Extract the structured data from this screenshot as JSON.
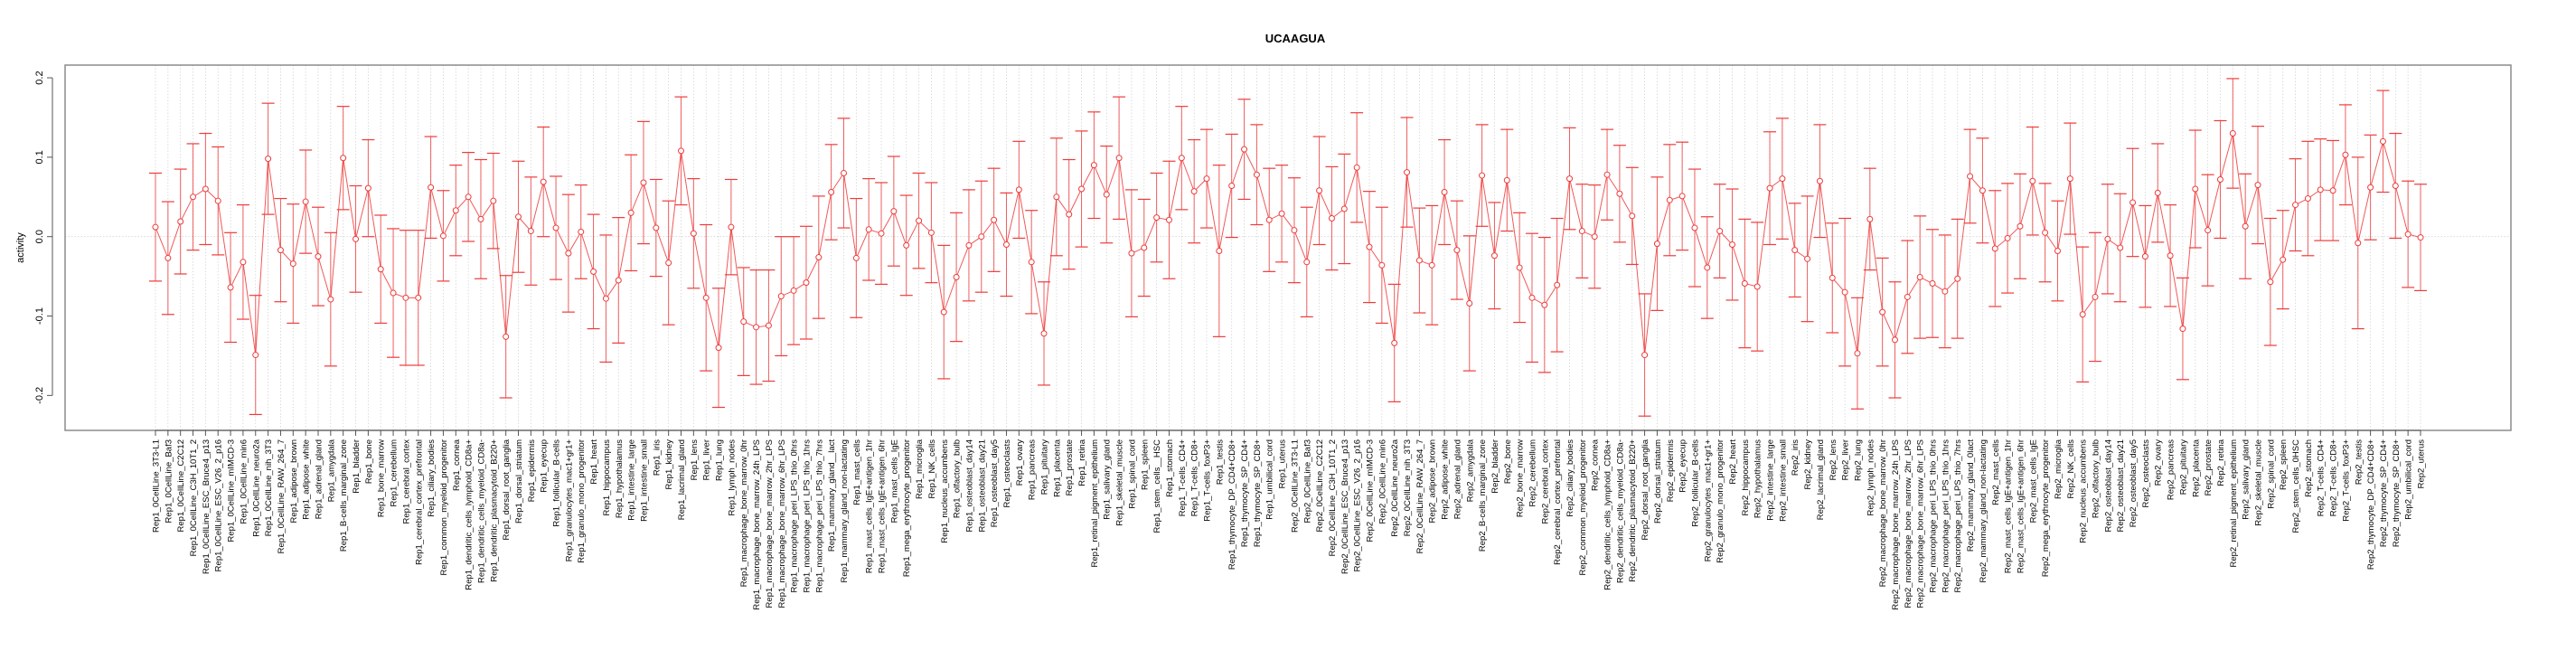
{
  "chart_data": {
    "type": "line",
    "title": "UCAAGUA",
    "xlabel": "",
    "ylabel": "activity",
    "ylim": [
      -0.244,
      0.216
    ],
    "yticks": [
      -0.2,
      -0.1,
      0.0,
      0.1,
      0.2
    ],
    "ytick_labels": [
      "-0.2",
      "-0.1",
      "0.0",
      "0.1",
      "0.2"
    ],
    "grid": true,
    "legend": "none",
    "color": "#ee3b3b",
    "categories": [
      "Rep1_0CellLine_3T3-L1",
      "Rep1_0CellLine_Baf3",
      "Rep1_0CellLine_C2C12",
      "Rep1_0CellLine_C3H_10T1_2",
      "Rep1_0CellLine_ESC_Bruce4_p13",
      "Rep1_0CellLine_ESC_V26_2_p16",
      "Rep1_0CellLine_mIMCD-3",
      "Rep1_0CellLine_min6",
      "Rep1_0CellLine_neuro2a",
      "Rep1_0CellLine_nih_3T3",
      "Rep1_0CellLine_RAW_264_7",
      "Rep1_adipose_brown",
      "Rep1_adipose_white",
      "Rep1_adrenal_gland",
      "Rep1_amygdala",
      "Rep1_B-cells_marginal_zone",
      "Rep1_bladder",
      "Rep1_bone",
      "Rep1_bone_marrow",
      "Rep1_cerebellum",
      "Rep1_cerebral_cortex",
      "Rep1_cerebral_cortex_prefrontal",
      "Rep1_ciliary_bodies",
      "Rep1_common_myeloid_progenitor",
      "Rep1_cornea",
      "Rep1_dendritic_cells_lymphoid_CD8a+",
      "Rep1_dendritic_cells_myeloid_CD8a-",
      "Rep1_dendritic_plasmacytoid_B220+",
      "Rep1_dorsal_root_ganglia",
      "Rep1_dorsal_striatum",
      "Rep1_epidermis",
      "Rep1_eyecup",
      "Rep1_follicular_B-cells",
      "Rep1_granulocytes_mac1+gr1+",
      "Rep1_granulo_mono_progenitor",
      "Rep1_heart",
      "Rep1_hippocampus",
      "Rep1_hypothalamus",
      "Rep1_intestine_large",
      "Rep1_intestine_small",
      "Rep1_iris",
      "Rep1_kidney",
      "Rep1_lacrimal_gland",
      "Rep1_lens",
      "Rep1_liver",
      "Rep1_lung",
      "Rep1_lymph_nodes",
      "Rep1_macrophage_bone_marrow_0hr",
      "Rep1_macrophage_bone_marrow_24h_LPS",
      "Rep1_macrophage_bone_marrow_2hr_LPS",
      "Rep1_macrophage_bone_marrow_6hr_LPS",
      "Rep1_macrophage_peri_LPS_thio_0hrs",
      "Rep1_macrophage_peri_LPS_thio_1hrs",
      "Rep1_macrophage_peri_LPS_thio_7hrs",
      "Rep1_mammary_gland__lact",
      "Rep1_mammary_gland_non-lactating",
      "Rep1_mast_cells",
      "Rep1_mast_cells_IgE+antigen_1hr",
      "Rep1_mast_cells_IgE+antigen_6hr",
      "Rep1_mast_cells_IgE",
      "Rep1_mega_erythrocyte_progenitor",
      "Rep1_microglia",
      "Rep1_NK_cells",
      "Rep1_nucleus_accumbens",
      "Rep1_olfactory_bulb",
      "Rep1_osteoblast_day14",
      "Rep1_osteoblast_day21",
      "Rep1_osteoblast_day5",
      "Rep1_osteoclasts",
      "Rep1_ovary",
      "Rep1_pancreas",
      "Rep1_pituitary",
      "Rep1_placenta",
      "Rep1_prostate",
      "Rep1_retina",
      "Rep1_retinal_pigment_epithelium",
      "Rep1_salivary_gland",
      "Rep1_skeletal_muscle",
      "Rep1_spinal_cord",
      "Rep1_spleen",
      "Rep1_stem_cells__HSC",
      "Rep1_stomach",
      "Rep1_T-cells_CD4+",
      "Rep1_T-cells_CD8+",
      "Rep1_T-cells_foxP3+",
      "Rep1_testis",
      "Rep1_thymocyte_DP_CD4+CD8+",
      "Rep1_thymocyte_SP_CD4+",
      "Rep1_thymocyte_SP_CD8+",
      "Rep1_umbilical_cord",
      "Rep1_uterus",
      "Rep2_0CellLine_3T3-L1",
      "Rep2_0CellLine_Baf3",
      "Rep2_0CellLine_C2C12",
      "Rep2_0CellLine_C3H_10T1_2",
      "Rep2_0CellLine_ESC_Bruce4_p13",
      "Rep2_0CellLine_ESC_V26_2_p16",
      "Rep2_0CellLine_mIMCD-3",
      "Rep2_0CellLine_min6",
      "Rep2_0CellLine_neuro2a",
      "Rep2_0CellLine_nih_3T3",
      "Rep2_0CellLine_RAW_264_7",
      "Rep2_adipose_brown",
      "Rep2_adipose_white",
      "Rep2_adrenal_gland",
      "Rep2_amygdala",
      "Rep2_B-cells_marginal_zone",
      "Rep2_bladder",
      "Rep2_bone",
      "Rep2_bone_marrow",
      "Rep2_cerebellum",
      "Rep2_cerebral_cortex",
      "Rep2_cerebral_cortex_prefrontal",
      "Rep2_ciliary_bodies",
      "Rep2_common_myeloid_progenitor",
      "Rep2_cornea",
      "Rep2_dendritic_cells_lymphoid_CD8a+",
      "Rep2_dendritic_cells_myeloid_CD8a-",
      "Rep2_dendritic_plasmacytoid_B220+",
      "Rep2_dorsal_root_ganglia",
      "Rep2_dorsal_striatum",
      "Rep2_epidermis",
      "Rep2_eyecup",
      "Rep2_follicular_B-cells",
      "Rep2_granulocytes_mac1+gr1+",
      "Rep2_granulo_mono_progenitor",
      "Rep2_heart",
      "Rep2_hippocampus",
      "Rep2_hypothalamus",
      "Rep2_intestine_large",
      "Rep2_intestine_small",
      "Rep2_iris",
      "Rep2_kidney",
      "Rep2_lacrimal_gland",
      "Rep2_lens",
      "Rep2_liver",
      "Rep2_lung",
      "Rep2_lymph_nodes",
      "Rep2_macrophage_bone_marrow_0hr",
      "Rep2_macrophage_bone_marrow_24h_LPS",
      "Rep2_macrophage_bone_marrow_2hr_LPS",
      "Rep2_macrophage_bone_marrow_6hr_LPS",
      "Rep2_macrophage_peri_LPS_thio_0hrs",
      "Rep2_macrophage_peri_LPS_thio_1hrs",
      "Rep2_macrophage_peri_LPS_thio_7hrs",
      "Rep2_mammary_gland_0lact",
      "Rep2_mammary_gland_non-lactating",
      "Rep2_mast_cells",
      "Rep2_mast_cells_IgE+antigen_1hr",
      "Rep2_mast_cells_IgE+antigen_6hr",
      "Rep2_mast_cells_IgE",
      "Rep2_mega_erythrocyte_progenitor",
      "Rep2_microglia",
      "Rep2_NK_cells",
      "Rep2_nucleus_accumbens",
      "Rep2_olfactory_bulb",
      "Rep2_osteoblast_day14",
      "Rep2_osteoblast_day21",
      "Rep2_osteoblast_day5",
      "Rep2_osteoclasts",
      "Rep2_ovary",
      "Rep2_pancreas",
      "Rep2_pituitary",
      "Rep2_placenta",
      "Rep2_prostate",
      "Rep2_retina",
      "Rep2_retinal_pigment_epithelium",
      "Rep2_salivary_gland",
      "Rep2_skeletal_muscle",
      "Rep2_spinal_cord",
      "Rep2_spleen",
      "Rep2_stem_cells_0HSC",
      "Rep2_stomach",
      "Rep2_T-cells_CD4+",
      "Rep2_T-cells_CD8+",
      "Rep2_T-cells_foxP3+",
      "Rep2_testis",
      "Rep2_thymocyte_DP_CD4+CD8+",
      "Rep2_thymocyte_SP_CD4+",
      "Rep2_thymocyte_SP_CD8+",
      "Rep2_umbilical_cord",
      "Rep2_uterus"
    ],
    "values": [
      0.012,
      -0.027,
      0.019,
      0.05,
      0.06,
      0.045,
      -0.064,
      -0.032,
      -0.149,
      0.098,
      -0.017,
      -0.034,
      0.044,
      -0.025,
      -0.079,
      0.099,
      -0.003,
      0.061,
      -0.041,
      -0.071,
      -0.077,
      -0.077,
      0.062,
      0.001,
      0.033,
      0.05,
      0.022,
      0.045,
      -0.126,
      0.025,
      0.007,
      0.069,
      0.011,
      -0.021,
      0.006,
      -0.044,
      -0.078,
      -0.055,
      0.03,
      0.068,
      0.011,
      -0.033,
      0.108,
      0.004,
      -0.077,
      -0.14,
      0.012,
      -0.107,
      -0.114,
      -0.112,
      -0.075,
      -0.068,
      -0.058,
      -0.026,
      0.056,
      0.08,
      -0.027,
      0.009,
      0.004,
      0.032,
      -0.011,
      0.02,
      0.005,
      -0.095,
      -0.051,
      -0.011,
      0.0,
      0.021,
      -0.01,
      0.059,
      -0.032,
      -0.122,
      0.05,
      0.028,
      0.06,
      0.09,
      0.053,
      0.099,
      -0.021,
      -0.014,
      0.024,
      0.021,
      0.099,
      0.057,
      0.073,
      -0.018,
      0.064,
      0.11,
      0.078,
      0.021,
      0.029,
      0.008,
      -0.032,
      0.058,
      0.023,
      0.035,
      0.087,
      -0.013,
      -0.036,
      -0.134,
      0.081,
      -0.03,
      -0.036,
      0.056,
      -0.017,
      -0.084,
      0.077,
      -0.024,
      0.071,
      -0.039,
      -0.077,
      -0.086,
      -0.061,
      0.073,
      0.007,
      0.0,
      0.078,
      0.054,
      0.026,
      -0.149,
      -0.009,
      0.046,
      0.051,
      0.011,
      -0.039,
      0.007,
      -0.01,
      -0.059,
      -0.063,
      0.061,
      0.073,
      -0.017,
      -0.028,
      0.07,
      -0.052,
      -0.07,
      -0.147,
      0.022,
      -0.095,
      -0.13,
      -0.076,
      -0.051,
      -0.059,
      -0.069,
      -0.053,
      0.076,
      0.058,
      -0.015,
      -0.002,
      0.013,
      0.07,
      0.005,
      -0.018,
      0.073,
      -0.098,
      -0.076,
      -0.003,
      -0.014,
      0.043,
      -0.025,
      0.055,
      -0.024,
      -0.116,
      0.06,
      0.008,
      0.072,
      0.13,
      0.013,
      0.065,
      -0.057,
      -0.029,
      0.04,
      0.048,
      0.059,
      0.058,
      0.103,
      -0.008,
      0.062,
      0.12,
      0.064,
      0.003,
      -0.001
    ],
    "errors": [
      0.068,
      0.071,
      0.066,
      0.067,
      0.07,
      0.068,
      0.069,
      0.072,
      0.075,
      0.07,
      0.065,
      0.075,
      0.065,
      0.062,
      0.084,
      0.065,
      0.067,
      0.061,
      0.068,
      0.081,
      0.085,
      0.085,
      0.064,
      0.057,
      0.057,
      0.056,
      0.075,
      0.06,
      0.077,
      0.07,
      0.068,
      0.069,
      0.065,
      0.074,
      0.059,
      0.072,
      0.08,
      0.079,
      0.073,
      0.077,
      0.061,
      0.078,
      0.068,
      0.069,
      0.092,
      0.075,
      0.06,
      0.068,
      0.072,
      0.07,
      0.075,
      0.068,
      0.071,
      0.077,
      0.06,
      0.069,
      0.075,
      0.064,
      0.064,
      0.069,
      0.063,
      0.06,
      0.063,
      0.084,
      0.081,
      0.07,
      0.07,
      0.065,
      0.065,
      0.061,
      0.065,
      0.065,
      0.074,
      0.069,
      0.073,
      0.067,
      0.061,
      0.077,
      0.08,
      0.061,
      0.056,
      0.074,
      0.065,
      0.065,
      0.062,
      0.108,
      0.065,
      0.063,
      0.063,
      0.065,
      0.061,
      0.066,
      0.069,
      0.068,
      0.065,
      0.069,
      0.069,
      0.07,
      0.073,
      0.074,
      0.069,
      0.066,
      0.075,
      0.066,
      0.062,
      0.085,
      0.064,
      0.067,
      0.064,
      0.069,
      0.081,
      0.085,
      0.084,
      0.064,
      0.059,
      0.065,
      0.057,
      0.061,
      0.061,
      0.077,
      0.084,
      0.07,
      0.068,
      0.074,
      0.064,
      0.059,
      0.07,
      0.081,
      0.081,
      0.071,
      0.076,
      0.059,
      0.079,
      0.071,
      0.069,
      0.093,
      0.07,
      0.064,
      0.068,
      0.073,
      0.071,
      0.077,
      0.068,
      0.071,
      0.075,
      0.059,
      0.066,
      0.073,
      0.069,
      0.066,
      0.068,
      0.062,
      0.063,
      0.07,
      0.085,
      0.081,
      0.069,
      0.068,
      0.068,
      0.064,
      0.062,
      0.064,
      0.064,
      0.074,
      0.07,
      0.074,
      0.069,
      0.066,
      0.074,
      0.08,
      0.062,
      0.058,
      0.072,
      0.064,
      0.063,
      0.063,
      0.108,
      0.066,
      0.064,
      0.066,
      0.067,
      0.067
    ]
  }
}
